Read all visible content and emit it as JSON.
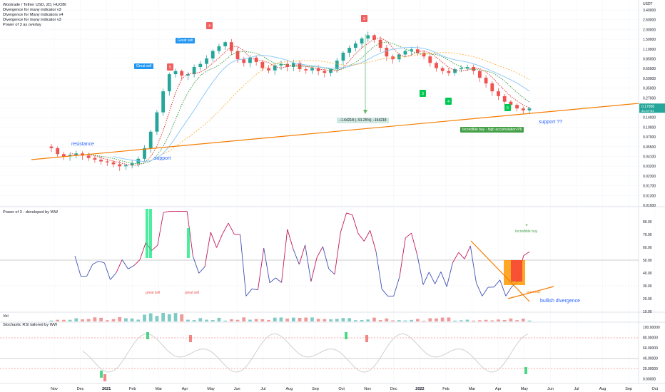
{
  "legend": {
    "symbol": "Wootrade / Tether USD, 2D, HUOBI",
    "line1": "Divergence for many indicator v3",
    "line2": "Divergence for Many indicators v4",
    "line3": "Divergence for many indicator v3",
    "line4": "Power of 3 as overlay"
  },
  "panes": {
    "power3": "Power of 3 - developed by WW",
    "vol": "Vol",
    "stoch": "Stochastic RSI tailored by WW"
  },
  "annotations": {
    "resistance": "resistance",
    "support": "support",
    "support_q": "support ??",
    "bullish_div": "bullish divergence",
    "measure": "−1.64218 (−91.25%) −164218",
    "incredible_buy": "Incredible buy - high accumulation P6",
    "great_sell_a": "Great sell",
    "great_sell_b": "Great sell",
    "great_sell_c": "great sell",
    "great_sell_d": "great sell",
    "incredible_buy_small": "Incredible buy",
    "good_buy": "Good buy"
  },
  "price_axis": {
    "currency": "USDT",
    "ticks": [
      "3.40000",
      "2.60000",
      "2.00000",
      "1.50000",
      "1.10000",
      "0.85000",
      "0.65000",
      "0.50000",
      "0.35000",
      "0.27000",
      "0.20000",
      "0.14000",
      "0.10000",
      "0.07000",
      "0.05500",
      "0.04100",
      "0.03200",
      "0.02300",
      "0.01700",
      "0.01300",
      "0.01000"
    ],
    "last_price": "0.17958",
    "last_sub": "21:47:51"
  },
  "power3_axis": {
    "ticks": [
      "80.00",
      "70.00",
      "60.00",
      "50.00",
      "40.00",
      "30.00",
      "20.00",
      "10.00"
    ]
  },
  "stoch_axis": {
    "ticks": [
      "100.00000",
      "80.00000",
      "60.00000",
      "40.00000",
      "20.00000",
      "0.00000"
    ]
  },
  "time_axis": {
    "ticks": [
      "Nov",
      "Dec",
      "2021",
      "Feb",
      "Mar",
      "Apr",
      "May",
      "Jun",
      "Jul",
      "Aug",
      "Sep",
      "Oct",
      "Nov",
      "Dec",
      "2022",
      "Feb",
      "Mar",
      "Apr",
      "May",
      "Jun",
      "Jul",
      "Aug",
      "Sep",
      "Oct"
    ]
  },
  "markers": {
    "sell": [
      "5",
      "4",
      "3"
    ],
    "buy": [
      "3",
      "4",
      "5"
    ]
  },
  "colors": {
    "up": "#26a69a",
    "down": "#ef5350",
    "trendline": "#f57c00",
    "blue": "#2962ff",
    "sell_marker": "#f06060",
    "buy_marker": "#00c853",
    "power3_pos": "#c2185b",
    "power3_neg": "#3f51b5"
  },
  "chart_data": {
    "type": "candlestick",
    "title": "Wootrade / Tether USD, 2D, HUOBI",
    "yscale": "log",
    "ylim": [
      0.01,
      3.4
    ],
    "close": [
      0.055,
      0.046,
      0.043,
      0.045,
      0.047,
      0.044,
      0.041,
      0.039,
      0.037,
      0.036,
      0.034,
      0.032,
      0.033,
      0.035,
      0.04,
      0.055,
      0.09,
      0.16,
      0.3,
      0.5,
      0.55,
      0.48,
      0.5,
      0.62,
      0.68,
      0.8,
      1.0,
      1.15,
      1.3,
      1.0,
      0.78,
      0.7,
      0.82,
      0.72,
      0.6,
      0.56,
      0.65,
      0.68,
      0.62,
      0.7,
      0.58,
      0.56,
      0.6,
      0.55,
      0.52,
      0.58,
      0.75,
      0.95,
      1.1,
      1.25,
      1.45,
      1.6,
      1.4,
      1.1,
      0.85,
      0.78,
      0.9,
      1.0,
      1.05,
      0.95,
      0.85,
      0.7,
      0.6,
      0.55,
      0.52,
      0.58,
      0.6,
      0.62,
      0.55,
      0.45,
      0.38,
      0.3,
      0.26,
      0.22,
      0.2,
      0.18,
      0.17,
      0.18
    ],
    "oscillator": {
      "name": "Power of 3 - developed by WW",
      "ylim": [
        10,
        90
      ],
      "midline": 50
    },
    "stoch_rsi": {
      "name": "Stochastic RSI tailored by WW",
      "ylim": [
        0,
        100
      ],
      "levels": [
        80,
        20
      ]
    }
  }
}
